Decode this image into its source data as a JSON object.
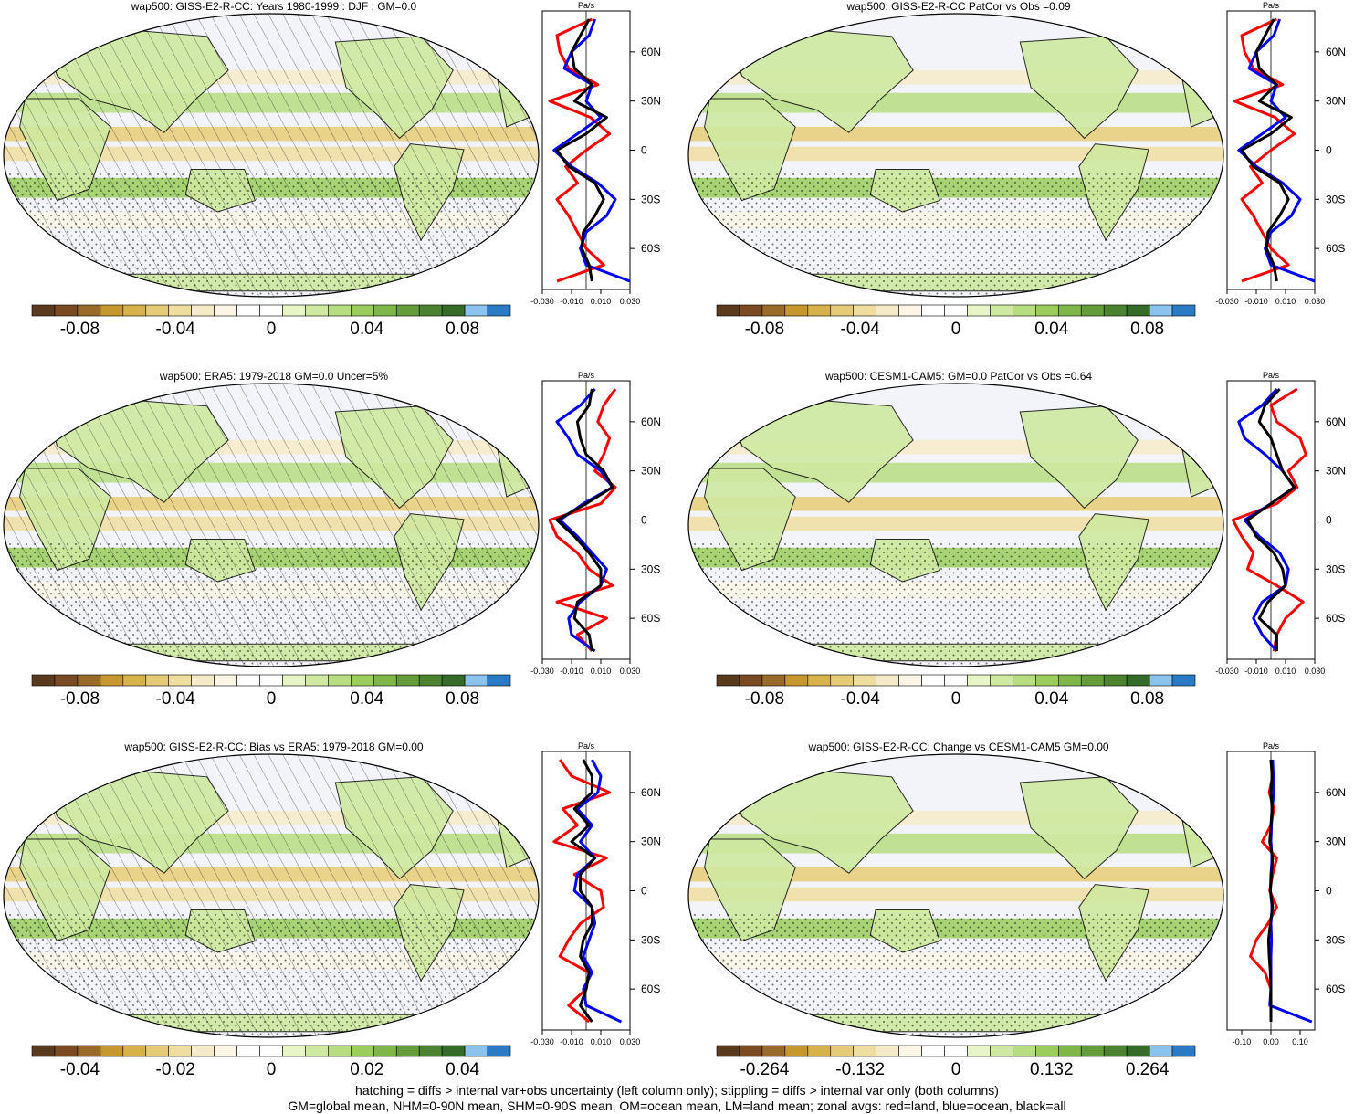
{
  "colors": {
    "ocean": "#f3f4fa",
    "land_line": "#111111",
    "zonal_land": "#ff0000",
    "zonal_ocean": "#0000ff",
    "zonal_all": "#000000",
    "colorbar": [
      "#5a3a1c",
      "#7a4a22",
      "#9a6a2a",
      "#c6972c",
      "#d7b24a",
      "#e6cb76",
      "#efdda0",
      "#f6ebc8",
      "#fbf6e6",
      "#ffffff",
      "#ffffff",
      "#e8f5c6",
      "#cfe9a0",
      "#b6dd80",
      "#9acd5c",
      "#7fb648",
      "#649c39",
      "#4b822f",
      "#356b28",
      "#8ac3ee",
      "#2a7ac6"
    ]
  },
  "footnote": {
    "line1": "hatching = diffs > internal var+obs uncertainty (left column only); stippling = diffs > internal var only (both columns)",
    "line2": "GM=global mean, NHM=0-90N mean, SHM=0-90S mean, OM=ocean mean, LM=land mean; zonal avgs: red=land, blue=ocean, black=all"
  },
  "chart_data": [
    {
      "type": "heatmap",
      "title": "wap500: GISS-E2-R-CC: Years 1980-1999 : DJF : GM=0.0",
      "colorbar_ticks": [
        "-0.08",
        "-0.04",
        "0",
        "0.04",
        "0.08"
      ],
      "colorbar_range": [
        -0.1,
        0.1
      ],
      "hatching": true,
      "stippling": true,
      "zonal": {
        "unit": "Pa/s",
        "xlim": [
          -0.03,
          0.03
        ],
        "xticks": [
          "-0.030",
          "-0.010",
          "0.010",
          "0.030"
        ],
        "yticks": [
          "60N",
          "30N",
          "0",
          "30S",
          "60S"
        ],
        "series": [
          {
            "name": "land",
            "color": "#ff0000",
            "lat": [
              80,
              70,
              60,
              50,
              40,
              30,
              20,
              10,
              0,
              -10,
              -20,
              -30,
              -40,
              -50,
              -60,
              -70,
              -80
            ],
            "values": [
              0.004,
              -0.02,
              -0.018,
              -0.012,
              0.008,
              -0.025,
              0.003,
              0.016,
              0.0,
              -0.014,
              -0.006,
              -0.02,
              -0.012,
              -0.006,
              0.0,
              0.012,
              -0.02
            ]
          },
          {
            "name": "ocean",
            "color": "#0000ff",
            "lat": [
              80,
              70,
              60,
              50,
              40,
              30,
              20,
              10,
              0,
              -10,
              -20,
              -30,
              -40,
              -50,
              -60,
              -70,
              -80
            ],
            "values": [
              0.006,
              0.002,
              -0.01,
              -0.015,
              0.004,
              0.0,
              0.01,
              -0.006,
              -0.022,
              -0.01,
              0.008,
              0.02,
              0.014,
              0.0,
              -0.004,
              0.0,
              0.03
            ]
          },
          {
            "name": "all",
            "color": "#000000",
            "lat": [
              80,
              70,
              60,
              50,
              40,
              30,
              20,
              10,
              0,
              -10,
              -20,
              -30,
              -40,
              -50,
              -60,
              -70,
              -80
            ],
            "values": [
              0.002,
              -0.004,
              -0.01,
              -0.008,
              0.004,
              -0.008,
              0.014,
              0.0,
              -0.02,
              -0.012,
              0.006,
              0.012,
              0.006,
              -0.002,
              -0.003,
              0.002,
              0.004
            ]
          }
        ]
      }
    },
    {
      "type": "heatmap",
      "title": "wap500: GISS-E2-R-CC PatCor vs Obs =0.09",
      "colorbar_ticks": [
        "-0.08",
        "-0.04",
        "0",
        "0.04",
        "0.08"
      ],
      "colorbar_range": [
        -0.1,
        0.1
      ],
      "hatching": false,
      "stippling": true,
      "zonal": {
        "unit": "Pa/s",
        "xlim": [
          -0.03,
          0.03
        ],
        "xticks": [
          "-0.030",
          "-0.010",
          "0.010",
          "0.030"
        ],
        "yticks": [
          "60N",
          "30N",
          "0",
          "30S",
          "60S"
        ],
        "series": [
          {
            "name": "land",
            "color": "#ff0000",
            "lat": [
              80,
              70,
              60,
              50,
              40,
              30,
              20,
              10,
              0,
              -10,
              -20,
              -30,
              -40,
              -50,
              -60,
              -70,
              -80
            ],
            "values": [
              0.004,
              -0.02,
              -0.018,
              -0.012,
              0.008,
              -0.025,
              0.003,
              0.016,
              0.0,
              -0.014,
              -0.006,
              -0.02,
              -0.012,
              -0.006,
              0.0,
              0.012,
              -0.02
            ]
          },
          {
            "name": "ocean",
            "color": "#0000ff",
            "lat": [
              80,
              70,
              60,
              50,
              40,
              30,
              20,
              10,
              0,
              -10,
              -20,
              -30,
              -40,
              -50,
              -60,
              -70,
              -80
            ],
            "values": [
              0.006,
              0.002,
              -0.01,
              -0.015,
              0.004,
              0.0,
              0.01,
              -0.006,
              -0.022,
              -0.01,
              0.008,
              0.02,
              0.014,
              0.0,
              -0.004,
              0.0,
              0.03
            ]
          },
          {
            "name": "all",
            "color": "#000000",
            "lat": [
              80,
              70,
              60,
              50,
              40,
              30,
              20,
              10,
              0,
              -10,
              -20,
              -30,
              -40,
              -50,
              -60,
              -70,
              -80
            ],
            "values": [
              0.002,
              -0.004,
              -0.01,
              -0.008,
              0.004,
              -0.008,
              0.014,
              0.0,
              -0.02,
              -0.012,
              0.006,
              0.012,
              0.006,
              -0.002,
              -0.003,
              0.002,
              0.004
            ]
          }
        ]
      }
    },
    {
      "type": "heatmap",
      "title": "wap500: ERA5: 1979-2018 GM=0.0 Uncer=5%",
      "colorbar_ticks": [
        "-0.08",
        "-0.04",
        "0",
        "0.04",
        "0.08"
      ],
      "colorbar_range": [
        -0.1,
        0.1
      ],
      "hatching": true,
      "stippling": true,
      "zonal": {
        "unit": "Pa/s",
        "xlim": [
          -0.03,
          0.03
        ],
        "xticks": [
          "-0.030",
          "-0.010",
          "0.010",
          "0.030"
        ],
        "yticks": [
          "60N",
          "30N",
          "0",
          "30S",
          "60S"
        ],
        "series": [
          {
            "name": "land",
            "color": "#ff0000",
            "lat": [
              80,
              70,
              60,
              50,
              40,
              30,
              20,
              10,
              0,
              -10,
              -20,
              -30,
              -40,
              -50,
              -60,
              -70,
              -80
            ],
            "values": [
              0.02,
              0.012,
              0.008,
              0.016,
              0.012,
              0.006,
              0.02,
              0.01,
              -0.025,
              -0.02,
              -0.006,
              0.002,
              0.018,
              -0.02,
              0.014,
              -0.006,
              0.004
            ]
          },
          {
            "name": "ocean",
            "color": "#0000ff",
            "lat": [
              80,
              70,
              60,
              50,
              40,
              30,
              20,
              10,
              0,
              -10,
              -20,
              -30,
              -40,
              -50,
              -60,
              -70,
              -80
            ],
            "values": [
              0.006,
              -0.004,
              -0.02,
              -0.012,
              -0.006,
              0.01,
              0.018,
              -0.002,
              -0.018,
              -0.006,
              0.004,
              0.014,
              0.01,
              -0.004,
              -0.012,
              -0.01,
              0.006
            ]
          },
          {
            "name": "all",
            "color": "#000000",
            "lat": [
              80,
              70,
              60,
              50,
              40,
              30,
              20,
              10,
              0,
              -10,
              -20,
              -30,
              -40,
              -50,
              -60,
              -70,
              -80
            ],
            "values": [
              0.004,
              0.002,
              -0.006,
              -0.004,
              0.0,
              0.012,
              0.018,
              0.0,
              -0.02,
              -0.008,
              0.002,
              0.01,
              0.01,
              -0.006,
              -0.008,
              0.002,
              0.004
            ]
          }
        ]
      }
    },
    {
      "type": "heatmap",
      "title": "wap500: CESM1-CAM5: GM=0.0 PatCor vs Obs =0.64",
      "colorbar_ticks": [
        "-0.08",
        "-0.04",
        "0",
        "0.04",
        "0.08"
      ],
      "colorbar_range": [
        -0.1,
        0.1
      ],
      "hatching": false,
      "stippling": true,
      "zonal": {
        "unit": "Pa/s",
        "xlim": [
          -0.03,
          0.03
        ],
        "xticks": [
          "-0.030",
          "-0.010",
          "0.010",
          "0.030"
        ],
        "yticks": [
          "60N",
          "30N",
          "0",
          "30S",
          "60S"
        ],
        "series": [
          {
            "name": "land",
            "color": "#ff0000",
            "lat": [
              80,
              70,
              60,
              50,
              40,
              30,
              20,
              10,
              0,
              -10,
              -20,
              -30,
              -40,
              -50,
              -60,
              -70,
              -80
            ],
            "values": [
              0.018,
              0.0,
              0.004,
              0.02,
              0.024,
              0.012,
              0.018,
              0.004,
              -0.026,
              -0.02,
              -0.012,
              -0.016,
              0.004,
              0.022,
              0.01,
              0.004,
              0.002
            ]
          },
          {
            "name": "ocean",
            "color": "#0000ff",
            "lat": [
              80,
              70,
              60,
              50,
              40,
              30,
              20,
              10,
              0,
              -10,
              -20,
              -30,
              -40,
              -50,
              -60,
              -70,
              -80
            ],
            "values": [
              0.004,
              -0.006,
              -0.022,
              -0.018,
              -0.004,
              0.008,
              0.016,
              0.0,
              -0.018,
              -0.008,
              0.006,
              0.012,
              0.01,
              -0.006,
              -0.012,
              -0.006,
              0.004
            ]
          },
          {
            "name": "all",
            "color": "#000000",
            "lat": [
              80,
              70,
              60,
              50,
              40,
              30,
              20,
              10,
              0,
              -10,
              -20,
              -30,
              -40,
              -50,
              -60,
              -70,
              -80
            ],
            "values": [
              0.006,
              -0.004,
              -0.008,
              0.0,
              0.004,
              0.008,
              0.016,
              0.0,
              -0.016,
              -0.01,
              0.002,
              0.008,
              0.01,
              -0.002,
              -0.008,
              0.004,
              0.004
            ]
          }
        ]
      }
    },
    {
      "type": "heatmap",
      "title": "wap500: GISS-E2-R-CC: Bias vs ERA5: 1979-2018 GM=0.00",
      "colorbar_ticks": [
        "-0.04",
        "-0.02",
        "0",
        "0.02",
        "0.04"
      ],
      "colorbar_range": [
        -0.05,
        0.05
      ],
      "hatching": true,
      "stippling": true,
      "zonal": {
        "unit": "Pa/s",
        "xlim": [
          -0.03,
          0.03
        ],
        "xticks": [
          "-0.030",
          "-0.010",
          "0.010",
          "0.030"
        ],
        "yticks": [
          "60N",
          "30N",
          "0",
          "30S",
          "60S"
        ],
        "series": [
          {
            "name": "land",
            "color": "#ff0000",
            "lat": [
              80,
              70,
              60,
              50,
              40,
              30,
              20,
              10,
              0,
              -10,
              -20,
              -30,
              -40,
              -50,
              -60,
              -70,
              -80
            ],
            "values": [
              -0.018,
              -0.01,
              0.016,
              -0.016,
              -0.006,
              -0.022,
              0.014,
              -0.008,
              0.01,
              0.012,
              -0.004,
              -0.012,
              -0.018,
              0.002,
              0.0,
              -0.012,
              0.002
            ]
          },
          {
            "name": "ocean",
            "color": "#0000ff",
            "lat": [
              80,
              70,
              60,
              50,
              40,
              30,
              20,
              10,
              0,
              -10,
              -20,
              -30,
              -40,
              -50,
              -60,
              -70,
              -80
            ],
            "values": [
              0.004,
              0.01,
              0.008,
              -0.006,
              0.004,
              -0.004,
              0.006,
              -0.006,
              -0.008,
              0.004,
              0.006,
              0.002,
              -0.002,
              0.004,
              -0.002,
              0.0,
              0.024
            ]
          },
          {
            "name": "all",
            "color": "#000000",
            "lat": [
              80,
              70,
              60,
              50,
              40,
              30,
              20,
              10,
              0,
              -10,
              -20,
              -30,
              -40,
              -50,
              -60,
              -70,
              -80
            ],
            "values": [
              -0.002,
              0.004,
              0.004,
              -0.008,
              0.002,
              -0.01,
              0.006,
              -0.004,
              -0.004,
              0.004,
              0.004,
              -0.002,
              -0.004,
              0.002,
              0.0,
              -0.004,
              0.004
            ]
          }
        ]
      }
    },
    {
      "type": "heatmap",
      "title": "wap500: GISS-E2-R-CC: Change vs CESM1-CAM5 GM=0.00",
      "colorbar_ticks": [
        "-0.264",
        "-0.132",
        "0",
        "0.132",
        "0.264"
      ],
      "colorbar_range": [
        -0.33,
        0.33
      ],
      "hatching": false,
      "stippling": true,
      "zonal": {
        "unit": "Pa/s",
        "xlim": [
          -0.15,
          0.15
        ],
        "xticks": [
          "-0.10",
          "0.00",
          "0.10"
        ],
        "yticks": [
          "60N",
          "30N",
          "0",
          "30S",
          "60S"
        ],
        "series": [
          {
            "name": "land",
            "color": "#ff0000",
            "lat": [
              80,
              70,
              60,
              50,
              40,
              30,
              20,
              10,
              0,
              -10,
              -20,
              -30,
              -40,
              -50,
              -60,
              -70,
              -80
            ],
            "values": [
              0.0,
              0.006,
              -0.006,
              0.01,
              0.0,
              -0.03,
              0.02,
              0.006,
              -0.004,
              0.02,
              -0.01,
              -0.05,
              -0.07,
              -0.02,
              0.0,
              0.0,
              0.0
            ]
          },
          {
            "name": "ocean",
            "color": "#0000ff",
            "lat": [
              80,
              70,
              60,
              50,
              40,
              30,
              20,
              10,
              0,
              -10,
              -20,
              -30,
              -40,
              -50,
              -60,
              -70,
              -80
            ],
            "values": [
              0.006,
              0.008,
              0.01,
              0.004,
              0.002,
              0.0,
              0.004,
              0.0,
              -0.002,
              0.004,
              0.0,
              0.002,
              0.0,
              0.0,
              0.0,
              -0.004,
              0.14
            ]
          },
          {
            "name": "all",
            "color": "#000000",
            "lat": [
              80,
              70,
              60,
              50,
              40,
              30,
              20,
              10,
              0,
              -10,
              -20,
              -30,
              -40,
              -50,
              -60,
              -70,
              -80
            ],
            "values": [
              0.0,
              0.004,
              0.0,
              0.004,
              0.0,
              -0.004,
              0.006,
              0.002,
              -0.002,
              0.006,
              -0.002,
              -0.008,
              -0.006,
              -0.002,
              0.0,
              0.0,
              0.0
            ]
          }
        ]
      }
    }
  ]
}
